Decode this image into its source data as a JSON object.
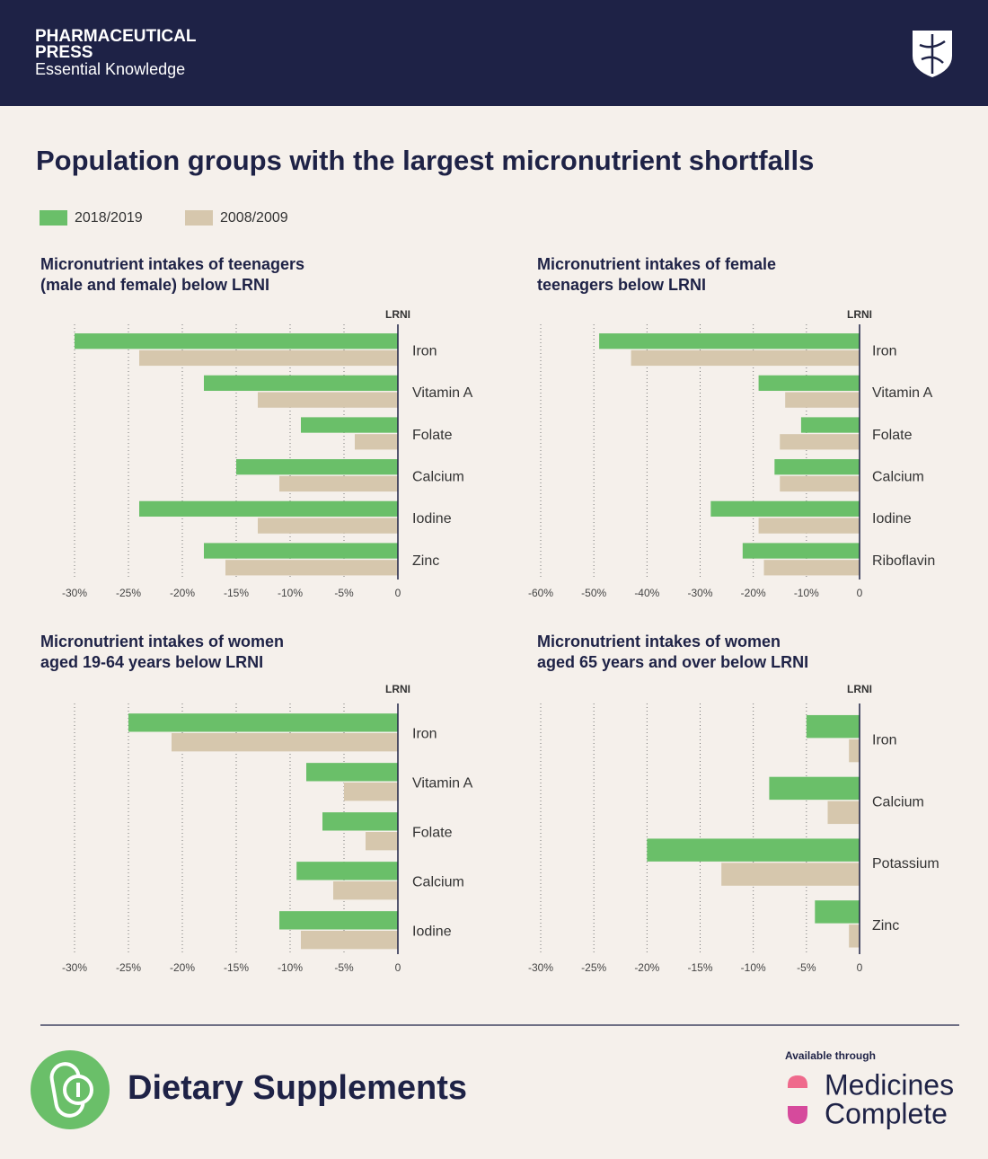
{
  "header": {
    "brand_line1": "PHARMACEUTICAL",
    "brand_line2": "PRESS",
    "tagline": "Essential Knowledge"
  },
  "title": "Population groups with the largest micronutrient shortfalls",
  "chart_data": [
    {
      "type": "bar",
      "orientation": "horizontal",
      "title": [
        "Micronutrient intakes of teenagers",
        "(male and female) below LRNI"
      ],
      "reference_label": "LRNI",
      "categories": [
        "Iron",
        "Vitamin A",
        "Folate",
        "Calcium",
        "Iodine",
        "Zinc"
      ],
      "series": [
        {
          "name": "2018/2019",
          "color": "#6abf69",
          "values": [
            -30,
            -18,
            -9,
            -15,
            -24,
            -18
          ]
        },
        {
          "name": "2008/2009",
          "color": "#d6c7ad",
          "values": [
            -24,
            -13,
            -4,
            -11,
            -13,
            -16
          ]
        }
      ],
      "xlim": [
        -30,
        0
      ],
      "xticks": [
        {
          "value": -30,
          "label": "-30%"
        },
        {
          "value": -25,
          "label": "-25%"
        },
        {
          "value": -20,
          "label": "-20%"
        },
        {
          "value": -15,
          "label": "-15%"
        },
        {
          "value": -10,
          "label": "-10%"
        },
        {
          "value": -5,
          "label": "-5%"
        },
        0
      ],
      "grid": true
    },
    {
      "type": "bar",
      "orientation": "horizontal",
      "title": [
        "Micronutrient intakes of female",
        "teenagers below LRNI"
      ],
      "reference_label": "LRNI",
      "categories": [
        "Iron",
        "Vitamin A",
        "Folate",
        "Calcium",
        "Iodine",
        "Riboflavin"
      ],
      "series": [
        {
          "name": "2018/2019",
          "color": "#6abf69",
          "values": [
            -49,
            -19,
            -11,
            -16,
            -28,
            -22
          ]
        },
        {
          "name": "2008/2009",
          "color": "#d6c7ad",
          "values": [
            -43,
            -14,
            -15,
            -15,
            -19,
            -18
          ]
        }
      ],
      "xlim": [
        -60,
        0
      ],
      "xticks": [
        {
          "value": -60,
          "label": "-60%"
        },
        {
          "value": -50,
          "label": "-50%"
        },
        {
          "value": -40,
          "label": "-40%"
        },
        {
          "value": -30,
          "label": "-30%"
        },
        {
          "value": -20,
          "label": "-20%"
        },
        {
          "value": -10,
          "label": "-10%"
        },
        0
      ],
      "grid": true
    },
    {
      "type": "bar",
      "orientation": "horizontal",
      "title": [
        "Micronutrient intakes of women",
        "aged 19-64 years below LRNI"
      ],
      "reference_label": "LRNI",
      "categories": [
        "Iron",
        "Vitamin A",
        "Folate",
        "Calcium",
        "Iodine"
      ],
      "series": [
        {
          "name": "2018/2019",
          "color": "#6abf69",
          "values": [
            -25,
            -8.5,
            -7,
            -9.4,
            -11
          ]
        },
        {
          "name": "2008/2009",
          "color": "#d6c7ad",
          "values": [
            -21,
            -5,
            -3,
            -6,
            -9
          ]
        }
      ],
      "xlim": [
        -30,
        0
      ],
      "xticks": [
        {
          "value": -30,
          "label": "-30%"
        },
        {
          "value": -25,
          "label": "-25%"
        },
        {
          "value": -20,
          "label": "-20%"
        },
        {
          "value": -15,
          "label": "-15%"
        },
        {
          "value": -10,
          "label": "-10%"
        },
        {
          "value": -5,
          "label": "-5%"
        },
        0
      ],
      "grid": true
    },
    {
      "type": "bar",
      "orientation": "horizontal",
      "title": [
        "Micronutrient intakes of women",
        "aged 65 years and over below LRNI"
      ],
      "reference_label": "LRNI",
      "categories": [
        "Iron",
        "Calcium",
        "Potassium",
        "Zinc"
      ],
      "series": [
        {
          "name": "2018/2019",
          "color": "#6abf69",
          "values": [
            -5,
            -8.5,
            -20,
            -4.2
          ]
        },
        {
          "name": "2008/2009",
          "color": "#d6c7ad",
          "values": [
            -1,
            -3,
            -13,
            -1
          ]
        }
      ],
      "xlim": [
        -30,
        0
      ],
      "xticks": [
        {
          "value": -30,
          "label": "-30%"
        },
        {
          "value": -25,
          "label": "-25%"
        },
        {
          "value": -20,
          "label": "-20%"
        },
        {
          "value": -15,
          "label": "-15%"
        },
        {
          "value": -10,
          "label": "-10%"
        },
        {
          "value": -5,
          "label": "-5%"
        },
        0
      ],
      "grid": true
    }
  ],
  "footer": {
    "product": "Dietary Supplements",
    "available": "Available through",
    "partner_line1": "Medicines",
    "partner_line2": "Complete"
  }
}
